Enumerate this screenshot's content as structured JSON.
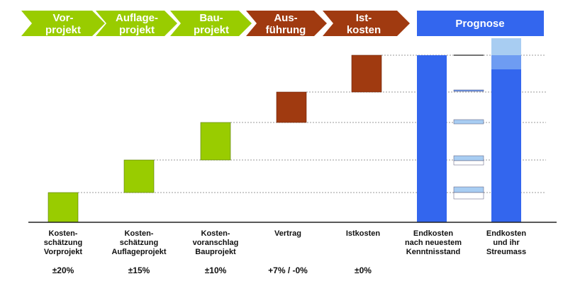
{
  "colors": {
    "green": "#99cc00",
    "brown": "#a03a10",
    "blue": "#3366ee",
    "light_blue": "#a8cdf2",
    "mid_blue": "#6e9cf2",
    "guide": "#999999"
  },
  "phases": [
    {
      "line1": "Vor-",
      "line2": "projekt"
    },
    {
      "line1": "Auflage-",
      "line2": "projekt"
    },
    {
      "line1": "Bau-",
      "line2": "projekt"
    },
    {
      "line1": "Aus-",
      "line2": "führung"
    },
    {
      "line1": "Ist-",
      "line2": "kosten"
    }
  ],
  "prognose": {
    "label": "Prognose"
  },
  "columns": [
    {
      "lines": [
        "Kosten-",
        "schätzung",
        "Vorprojekt"
      ],
      "accuracy": "±20%"
    },
    {
      "lines": [
        "Kosten-",
        "schätzung",
        "Auflageprojekt"
      ],
      "accuracy": "±15%"
    },
    {
      "lines": [
        "Kosten-",
        "voranschlag",
        "Bauprojekt"
      ],
      "accuracy": "±10%"
    },
    {
      "lines": [
        "Vertrag"
      ],
      "accuracy": "+7% / -0%"
    },
    {
      "lines": [
        "Istkosten"
      ],
      "accuracy": "±0%"
    },
    {
      "lines": [
        "Endkosten",
        "nach neuestem",
        "Kenntnisstand"
      ],
      "accuracy": ""
    },
    {
      "lines": [
        "Endkosten",
        "und ihr",
        "Streumass"
      ],
      "accuracy": ""
    }
  ]
}
